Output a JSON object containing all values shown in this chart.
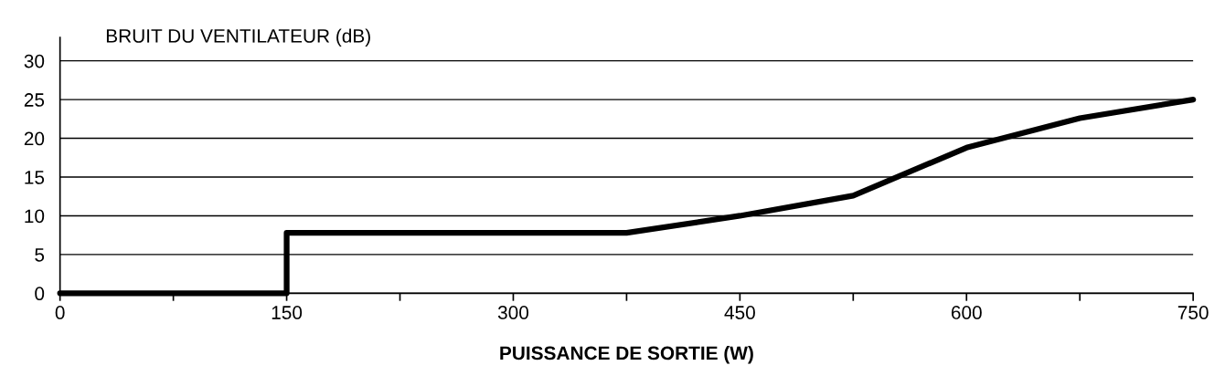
{
  "chart_data": {
    "type": "line",
    "ylabel": "BRUIT DU VENTILATEUR (dB)",
    "xlabel": "PUISSANCE DE SORTIE (W)",
    "x": [
      0,
      150,
      150,
      375,
      450,
      525,
      600,
      675,
      750
    ],
    "series": [
      {
        "color": "#000000",
        "values": [
          0,
          0,
          7.8,
          7.8,
          10,
          12.6,
          18.8,
          22.6,
          25
        ]
      }
    ],
    "xlim": [
      0,
      750
    ],
    "ylim": [
      0,
      33
    ],
    "xticks": [
      0,
      {
        "value": 75,
        "label": null
      },
      150,
      {
        "value": 225,
        "label": null
      },
      300,
      {
        "value": 375,
        "label": null
      },
      450,
      {
        "value": 525,
        "label": null
      },
      600,
      {
        "value": 675,
        "label": null
      },
      750
    ],
    "yticks": [
      0,
      5,
      10,
      15,
      20,
      25,
      30
    ],
    "grid": "y",
    "marker": "none",
    "line_style": "solid"
  }
}
